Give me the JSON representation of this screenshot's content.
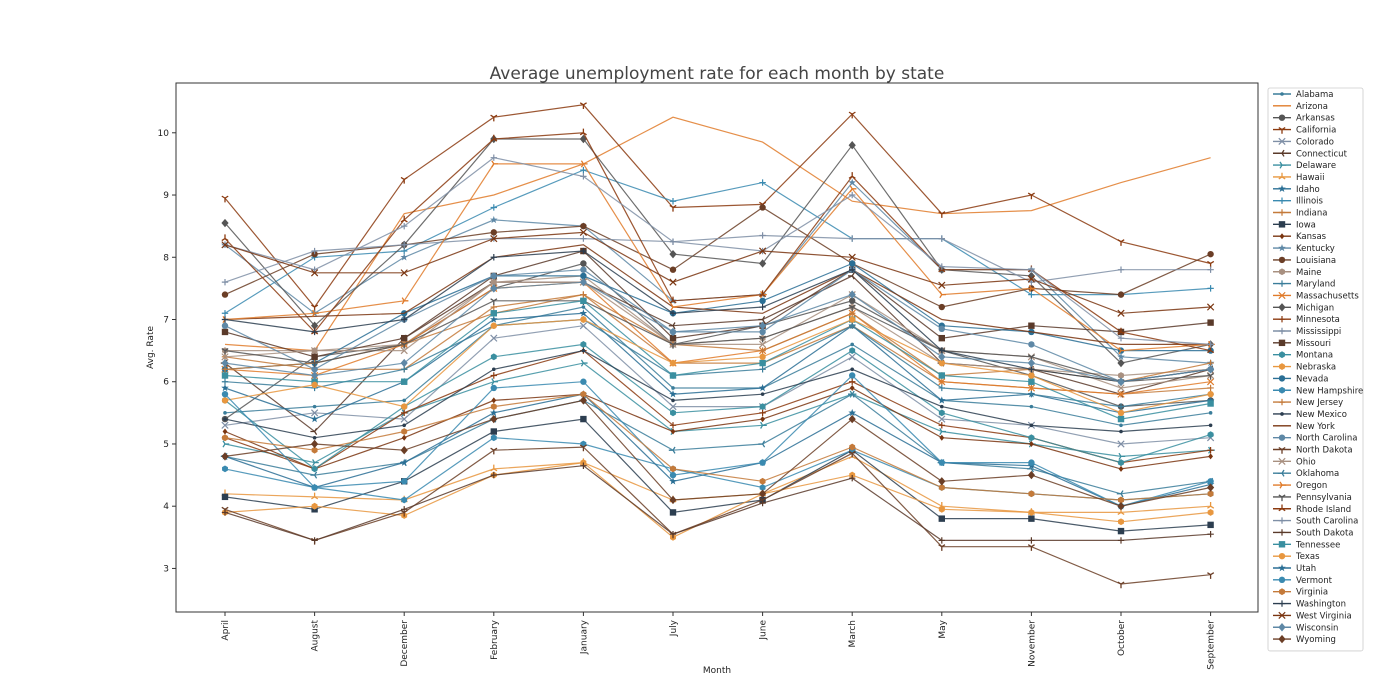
{
  "chart_data": {
    "type": "line",
    "title": "Average unemployment rate for each month by state",
    "xlabel": "Month",
    "ylabel": "Avg. Rate",
    "ylim": [
      2.3,
      10.8
    ],
    "yticks": [
      3,
      4,
      5,
      6,
      7,
      8,
      9,
      10
    ],
    "grid": false,
    "legend_position": "right-outside",
    "categories": [
      "April",
      "August",
      "December",
      "February",
      "January",
      "July",
      "June",
      "March",
      "May",
      "November",
      "October",
      "September"
    ],
    "colors": [
      "#3a7d9a",
      "#e07b2a",
      "#555555",
      "#8b3a0f",
      "#7f8fa6",
      "#5a3a2a",
      "#3a8fa0",
      "#e8973f",
      "#2a6f95",
      "#3a8ab0",
      "#c47a3a",
      "#2c3e50",
      "#7a3510",
      "#5e88a6",
      "#6b3e26",
      "#a89080"
    ],
    "series": [
      {
        "name": "Alabama",
        "marker": "point",
        "values": [
          5.5,
          5.6,
          5.7,
          6.9,
          7.2,
          5.9,
          5.9,
          6.6,
          5.7,
          5.6,
          5.3,
          5.5
        ]
      },
      {
        "name": "Arizona",
        "marker": "none",
        "values": [
          6.6,
          6.5,
          8.7,
          9.0,
          9.5,
          10.25,
          9.85,
          8.9,
          8.7,
          8.75,
          9.2,
          9.6
        ]
      },
      {
        "name": "Arkansas",
        "marker": "circle",
        "values": [
          5.4,
          6.4,
          6.6,
          7.5,
          7.9,
          6.6,
          6.9,
          7.3,
          6.5,
          6.1,
          5.6,
          5.7
        ]
      },
      {
        "name": "California",
        "marker": "tri_down",
        "values": [
          8.95,
          7.2,
          9.25,
          10.25,
          10.45,
          8.8,
          8.85,
          10.3,
          8.7,
          9.0,
          8.25,
          7.9
        ]
      },
      {
        "name": "Colorado",
        "marker": "x",
        "values": [
          5.3,
          5.5,
          5.4,
          6.7,
          6.9,
          5.6,
          5.6,
          6.4,
          5.4,
          5.3,
          5.0,
          5.1
        ]
      },
      {
        "name": "Connecticut",
        "marker": "tri_left",
        "values": [
          6.3,
          5.2,
          6.7,
          7.6,
          7.6,
          6.9,
          7.0,
          7.7,
          6.3,
          6.2,
          5.8,
          6.2
        ]
      },
      {
        "name": "Delaware",
        "marker": "tri_right",
        "values": [
          5.0,
          4.7,
          5.5,
          6.0,
          6.3,
          5.2,
          5.3,
          5.8,
          5.2,
          5.0,
          4.8,
          4.9
        ]
      },
      {
        "name": "Hawaii",
        "marker": "tri_up",
        "values": [
          4.2,
          4.15,
          4.1,
          4.6,
          4.7,
          4.1,
          4.2,
          4.8,
          4.0,
          3.9,
          3.9,
          4.0
        ]
      },
      {
        "name": "Idaho",
        "marker": "star",
        "values": [
          5.9,
          5.4,
          6.0,
          7.0,
          7.1,
          5.8,
          5.9,
          6.9,
          5.7,
          5.8,
          5.5,
          5.7
        ]
      },
      {
        "name": "Illinois",
        "marker": "plus",
        "values": [
          7.1,
          8.0,
          8.1,
          8.8,
          9.4,
          8.9,
          9.2,
          8.3,
          8.3,
          7.4,
          7.4,
          7.5
        ]
      },
      {
        "name": "Indiana",
        "marker": "plus",
        "values": [
          6.4,
          6.2,
          6.2,
          7.2,
          7.4,
          6.3,
          6.3,
          6.9,
          6.0,
          5.9,
          5.8,
          5.9
        ]
      },
      {
        "name": "Iowa",
        "marker": "square",
        "values": [
          4.15,
          3.95,
          4.4,
          5.2,
          5.4,
          3.9,
          4.1,
          4.9,
          3.8,
          3.8,
          3.6,
          3.7
        ]
      },
      {
        "name": "Kansas",
        "marker": "diamond_small",
        "values": [
          5.2,
          4.6,
          5.1,
          5.7,
          5.8,
          5.2,
          5.4,
          5.9,
          5.1,
          5.0,
          4.6,
          4.8
        ]
      },
      {
        "name": "Kentucky",
        "marker": "star",
        "values": [
          8.2,
          7.1,
          8.0,
          8.6,
          8.5,
          7.3,
          7.4,
          9.2,
          7.8,
          7.8,
          6.4,
          6.3
        ]
      },
      {
        "name": "Louisiana",
        "marker": "circle",
        "values": [
          7.4,
          8.05,
          8.2,
          8.4,
          8.5,
          7.8,
          8.8,
          7.9,
          7.2,
          7.5,
          7.4,
          8.05
        ]
      },
      {
        "name": "Maine",
        "marker": "hexagon",
        "values": [
          6.5,
          6.5,
          6.6,
          7.6,
          7.7,
          6.6,
          6.7,
          7.2,
          6.3,
          6.2,
          6.1,
          6.2
        ]
      },
      {
        "name": "Maryland",
        "marker": "plus",
        "values": [
          6.0,
          5.9,
          6.2,
          6.9,
          7.0,
          6.1,
          6.2,
          6.9,
          5.9,
          5.8,
          5.6,
          5.8
        ]
      },
      {
        "name": "Massachusetts",
        "marker": "x",
        "values": [
          6.2,
          6.1,
          6.6,
          7.5,
          7.6,
          6.3,
          6.5,
          7.1,
          6.0,
          5.9,
          5.8,
          6.0
        ]
      },
      {
        "name": "Michigan",
        "marker": "diamond",
        "values": [
          8.55,
          6.9,
          8.2,
          9.9,
          9.9,
          8.05,
          7.9,
          9.8,
          7.8,
          7.7,
          6.3,
          6.6
        ]
      },
      {
        "name": "Minnesota",
        "marker": "plus",
        "values": [
          5.1,
          4.6,
          5.5,
          6.1,
          6.5,
          5.3,
          5.5,
          6.0,
          5.3,
          5.1,
          4.7,
          4.9
        ]
      },
      {
        "name": "Mississippi",
        "marker": "plus",
        "values": [
          7.6,
          8.1,
          8.2,
          8.3,
          8.3,
          8.25,
          8.35,
          8.3,
          8.3,
          7.6,
          7.8,
          7.8
        ]
      },
      {
        "name": "Missouri",
        "marker": "square",
        "values": [
          6.8,
          6.4,
          6.7,
          7.7,
          8.1,
          6.7,
          6.9,
          7.8,
          6.7,
          6.9,
          6.8,
          6.95
        ]
      },
      {
        "name": "Montana",
        "marker": "hexagon",
        "values": [
          5.7,
          4.6,
          5.6,
          6.4,
          6.6,
          5.5,
          5.6,
          6.5,
          5.5,
          5.1,
          4.7,
          5.15
        ]
      },
      {
        "name": "Nebraska",
        "marker": "hexagon",
        "values": [
          3.9,
          4.0,
          3.85,
          4.5,
          4.7,
          3.5,
          4.2,
          4.5,
          3.95,
          3.9,
          3.75,
          3.9
        ]
      },
      {
        "name": "Nevada",
        "marker": "circle",
        "values": [
          6.2,
          6.3,
          7.1,
          7.7,
          7.7,
          7.1,
          7.3,
          7.9,
          6.9,
          6.8,
          6.5,
          6.5
        ]
      },
      {
        "name": "New Hampshire",
        "marker": "hexagon",
        "values": [
          4.6,
          4.3,
          4.1,
          5.1,
          5.0,
          4.6,
          4.3,
          4.9,
          4.3,
          4.2,
          4.1,
          4.2
        ]
      },
      {
        "name": "New Jersey",
        "marker": "plus",
        "values": [
          6.2,
          6.3,
          6.6,
          7.1,
          7.4,
          6.6,
          6.5,
          7.1,
          6.1,
          6.2,
          6.0,
          6.3
        ]
      },
      {
        "name": "New Mexico",
        "marker": "point",
        "values": [
          5.4,
          5.1,
          5.3,
          6.2,
          6.5,
          5.7,
          5.8,
          6.2,
          5.6,
          5.3,
          5.2,
          5.3
        ]
      },
      {
        "name": "New York",
        "marker": "none",
        "values": [
          7.0,
          7.05,
          7.1,
          8.0,
          8.2,
          7.2,
          7.1,
          7.8,
          7.0,
          6.8,
          6.6,
          6.6
        ]
      },
      {
        "name": "North Carolina",
        "marker": "circle",
        "values": [
          6.9,
          6.2,
          7.0,
          7.7,
          7.8,
          6.8,
          6.8,
          7.8,
          6.85,
          6.6,
          6.0,
          6.2
        ]
      },
      {
        "name": "North Dakota",
        "marker": "tri_down",
        "values": [
          3.95,
          3.45,
          3.9,
          4.9,
          4.95,
          3.55,
          4.1,
          4.85,
          3.35,
          3.35,
          2.75,
          2.9
        ]
      },
      {
        "name": "Ohio",
        "marker": "x",
        "values": [
          6.4,
          6.5,
          6.5,
          7.6,
          7.6,
          6.6,
          6.6,
          7.4,
          6.5,
          6.4,
          5.9,
          6.1
        ]
      },
      {
        "name": "Oklahoma",
        "marker": "tri_left",
        "values": [
          4.8,
          4.5,
          4.7,
          5.4,
          5.7,
          4.9,
          5.0,
          5.8,
          4.7,
          4.6,
          4.2,
          4.4
        ]
      },
      {
        "name": "Oregon",
        "marker": "tri_right",
        "values": [
          7.0,
          7.1,
          7.3,
          9.5,
          9.5,
          7.2,
          7.4,
          9.1,
          7.4,
          7.5,
          6.5,
          6.6
        ]
      },
      {
        "name": "Pennsylvania",
        "marker": "tri_down",
        "values": [
          6.5,
          6.3,
          6.6,
          7.3,
          7.3,
          6.6,
          6.7,
          7.2,
          6.5,
          6.4,
          6.0,
          6.1
        ]
      },
      {
        "name": "Rhode Island",
        "marker": "tri_up",
        "values": [
          8.3,
          6.8,
          8.6,
          9.9,
          10.0,
          7.3,
          7.4,
          9.3,
          7.8,
          7.8,
          6.8,
          6.5
        ]
      },
      {
        "name": "South Carolina",
        "marker": "plus",
        "values": [
          8.2,
          7.8,
          8.5,
          9.6,
          9.3,
          8.25,
          8.1,
          9.0,
          7.85,
          7.8,
          6.7,
          6.6
        ]
      },
      {
        "name": "South Dakota",
        "marker": "plus",
        "values": [
          3.9,
          3.45,
          3.95,
          4.5,
          4.65,
          3.55,
          4.05,
          4.45,
          3.45,
          3.45,
          3.45,
          3.55
        ]
      },
      {
        "name": "Tennessee",
        "marker": "square",
        "values": [
          6.1,
          6.0,
          6.0,
          7.1,
          7.3,
          6.1,
          6.3,
          7.0,
          6.1,
          6.0,
          5.4,
          5.65
        ]
      },
      {
        "name": "Texas",
        "marker": "circle",
        "values": [
          5.7,
          5.95,
          5.6,
          6.9,
          7.0,
          6.3,
          6.4,
          7.0,
          6.3,
          6.1,
          5.5,
          5.8
        ]
      },
      {
        "name": "Utah",
        "marker": "star",
        "values": [
          4.8,
          4.3,
          4.7,
          5.5,
          5.8,
          4.4,
          4.7,
          5.5,
          4.7,
          4.65,
          4.0,
          4.35
        ]
      },
      {
        "name": "Vermont",
        "marker": "circle",
        "values": [
          5.8,
          4.3,
          4.4,
          5.9,
          6.0,
          4.5,
          4.7,
          6.1,
          4.7,
          4.7,
          4.0,
          4.4
        ]
      },
      {
        "name": "Virginia",
        "marker": "hexagon",
        "values": [
          5.1,
          4.9,
          5.2,
          5.6,
          5.8,
          4.6,
          4.4,
          4.95,
          4.3,
          4.2,
          4.1,
          4.2
        ]
      },
      {
        "name": "Washington",
        "marker": "plus",
        "values": [
          7.0,
          6.8,
          7.0,
          8.0,
          8.1,
          7.1,
          7.2,
          7.8,
          6.5,
          6.2,
          6.0,
          6.2
        ]
      },
      {
        "name": "West Virginia",
        "marker": "x",
        "values": [
          8.2,
          7.75,
          7.75,
          8.3,
          8.4,
          7.6,
          8.1,
          8.0,
          7.55,
          7.65,
          7.1,
          7.2
        ]
      },
      {
        "name": "Wisconsin",
        "marker": "diamond",
        "values": [
          6.3,
          6.1,
          6.3,
          7.5,
          7.6,
          6.8,
          6.9,
          7.4,
          6.4,
          6.3,
          6.0,
          6.2
        ]
      },
      {
        "name": "Wyoming",
        "marker": "diamond",
        "values": [
          4.8,
          5.0,
          4.9,
          5.4,
          5.7,
          4.1,
          4.2,
          5.4,
          4.4,
          4.5,
          4.0,
          4.3
        ]
      }
    ]
  }
}
